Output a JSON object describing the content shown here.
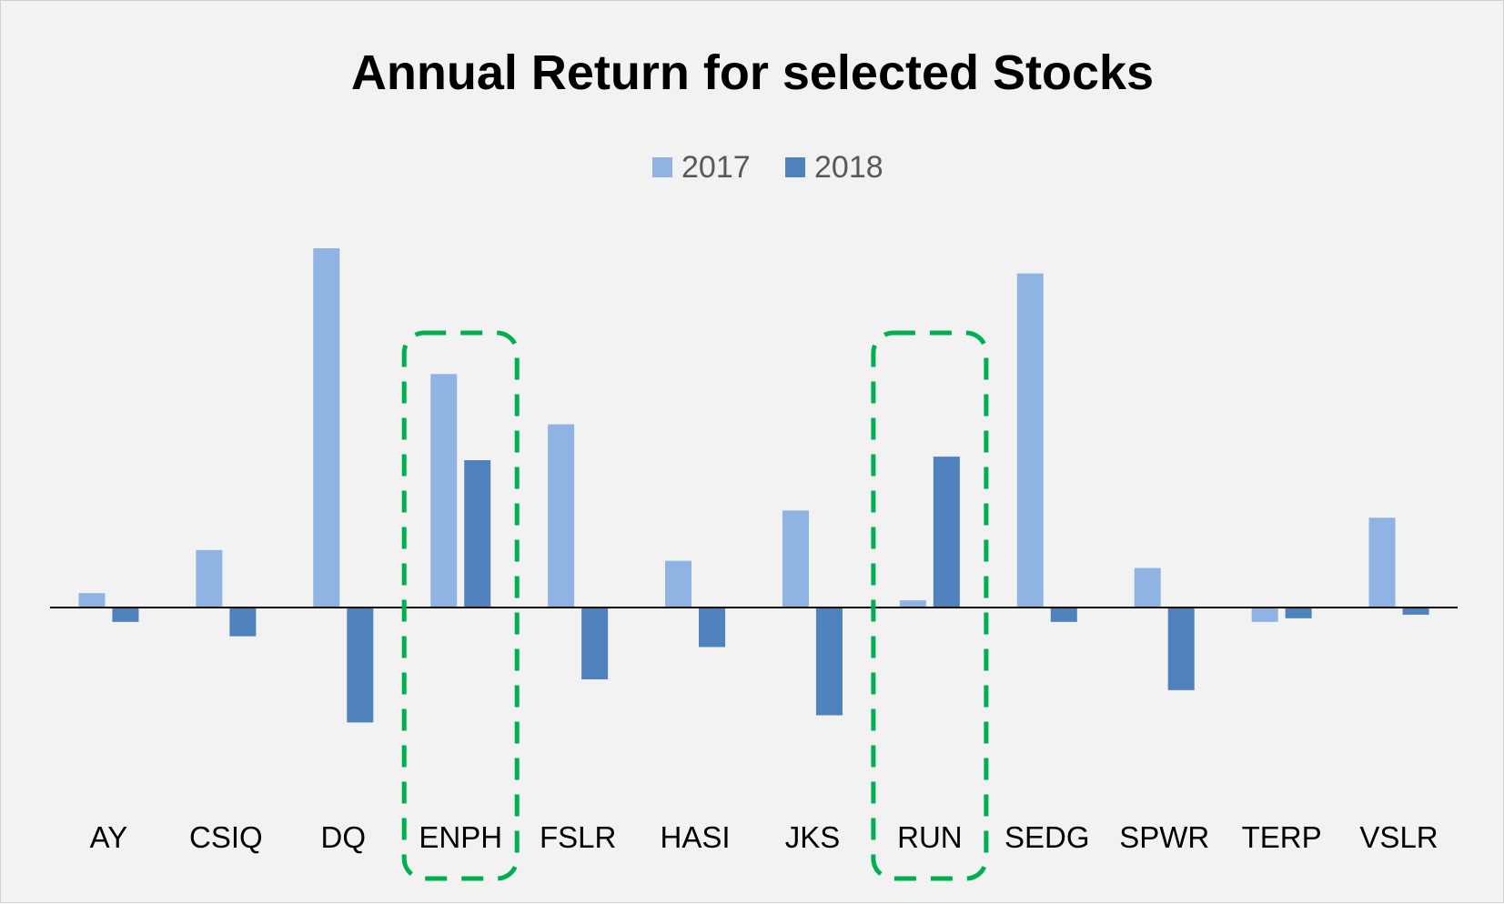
{
  "chart_data": {
    "type": "bar",
    "title": "Annual Return for selected Stocks",
    "categories": [
      "AY",
      "CSIQ",
      "DQ",
      "ENPH",
      "FSLR",
      "HASI",
      "JKS",
      "RUN",
      "SEDG",
      "SPWR",
      "TERP",
      "VSLR"
    ],
    "series": [
      {
        "name": "2017",
        "color": "#8fb4e3",
        "values": [
          0.04,
          0.16,
          1.0,
          0.65,
          0.51,
          0.13,
          0.27,
          0.02,
          0.93,
          0.11,
          -0.04,
          0.25
        ]
      },
      {
        "name": "2018",
        "color": "#4f81bd",
        "values": [
          -0.04,
          -0.08,
          -0.32,
          0.41,
          -0.2,
          -0.11,
          -0.3,
          0.42,
          -0.04,
          -0.23,
          -0.03,
          -0.02
        ]
      }
    ],
    "ylim": [
      -0.5,
      1.1
    ],
    "grid": false,
    "legend_position": "top",
    "highlighted_categories": [
      "ENPH",
      "RUN"
    ],
    "highlight_color": "#00b050"
  }
}
